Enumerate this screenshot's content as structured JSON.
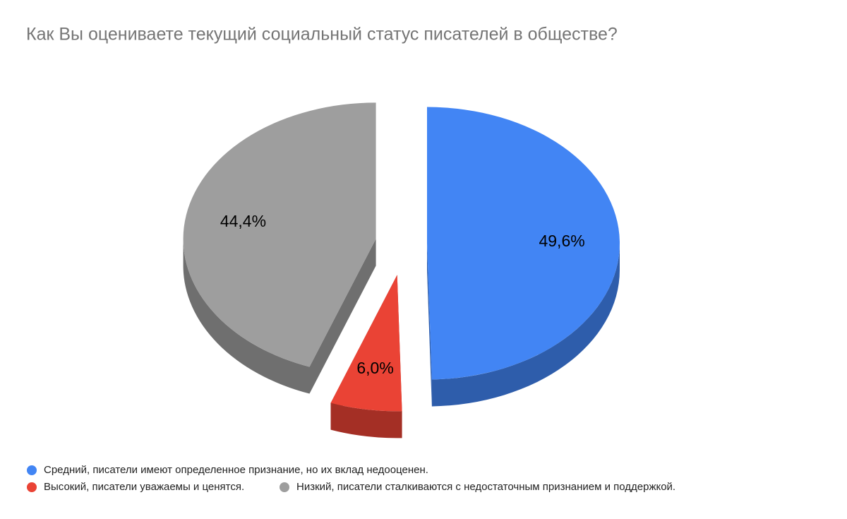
{
  "chart_data": {
    "type": "pie3d",
    "title": "Как Вы оцениваете текущий социальный статус писателей в обществе?",
    "series": [
      {
        "name": "Средний, писатели имеют определенное признание, но их вклад недооценен.",
        "color": "#4285f4",
        "values": [
          49.6
        ],
        "value_labels": [
          "49,6%"
        ]
      },
      {
        "name": "Высокий, писатели уважаемы и ценятся.",
        "color": "#ea4335",
        "values": [
          6.0
        ],
        "value_labels": [
          "6,0%"
        ]
      },
      {
        "name": "Низкий, писатели сталкиваются с недостаточным признанием и поддержкой.",
        "color": "#9e9e9e",
        "values": [
          44.4
        ],
        "value_labels": [
          "44,4%"
        ]
      }
    ]
  }
}
